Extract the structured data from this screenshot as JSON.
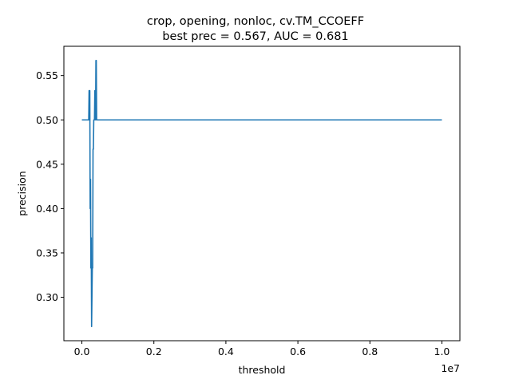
{
  "chart_data": {
    "type": "line",
    "title_line1": "crop, opening, nonloc, cv.TM_CCOEFF",
    "title_line2": "best prec = 0.567, AUC = 0.681",
    "xlabel": "threshold",
    "ylabel": "precision",
    "x_offset_label": "1e7",
    "xlim": [
      -500000,
      10500000
    ],
    "ylim": [
      0.251,
      0.583
    ],
    "x_ticks": [
      {
        "value": 0,
        "label": "0.0"
      },
      {
        "value": 2000000,
        "label": "0.2"
      },
      {
        "value": 4000000,
        "label": "0.4"
      },
      {
        "value": 6000000,
        "label": "0.6"
      },
      {
        "value": 8000000,
        "label": "0.8"
      },
      {
        "value": 10000000,
        "label": "1.0"
      }
    ],
    "y_ticks": [
      {
        "value": 0.3,
        "label": "0.30"
      },
      {
        "value": 0.35,
        "label": "0.35"
      },
      {
        "value": 0.4,
        "label": "0.40"
      },
      {
        "value": 0.45,
        "label": "0.45"
      },
      {
        "value": 0.5,
        "label": "0.50"
      },
      {
        "value": 0.55,
        "label": "0.55"
      }
    ],
    "grid": false,
    "series": [
      {
        "color": "#1f77b4",
        "x": [
          0,
          190000,
          200000,
          210000,
          220000,
          230000,
          240000,
          250000,
          260000,
          270000,
          280000,
          290000,
          300000,
          310000,
          320000,
          330000,
          340000,
          350000,
          360000,
          370000,
          380000,
          390000,
          400000,
          410000,
          420000,
          430000,
          440000,
          450000,
          460000,
          10000000
        ],
        "y": [
          0.5,
          0.5,
          0.533,
          0.5,
          0.533,
          0.4,
          0.433,
          0.333,
          0.367,
          0.267,
          0.3,
          0.333,
          0.333,
          0.467,
          0.467,
          0.5,
          0.5,
          0.5,
          0.533,
          0.533,
          0.5,
          0.567,
          0.567,
          0.5,
          0.5,
          0.5,
          0.5,
          0.5,
          0.5,
          0.5
        ]
      }
    ]
  }
}
